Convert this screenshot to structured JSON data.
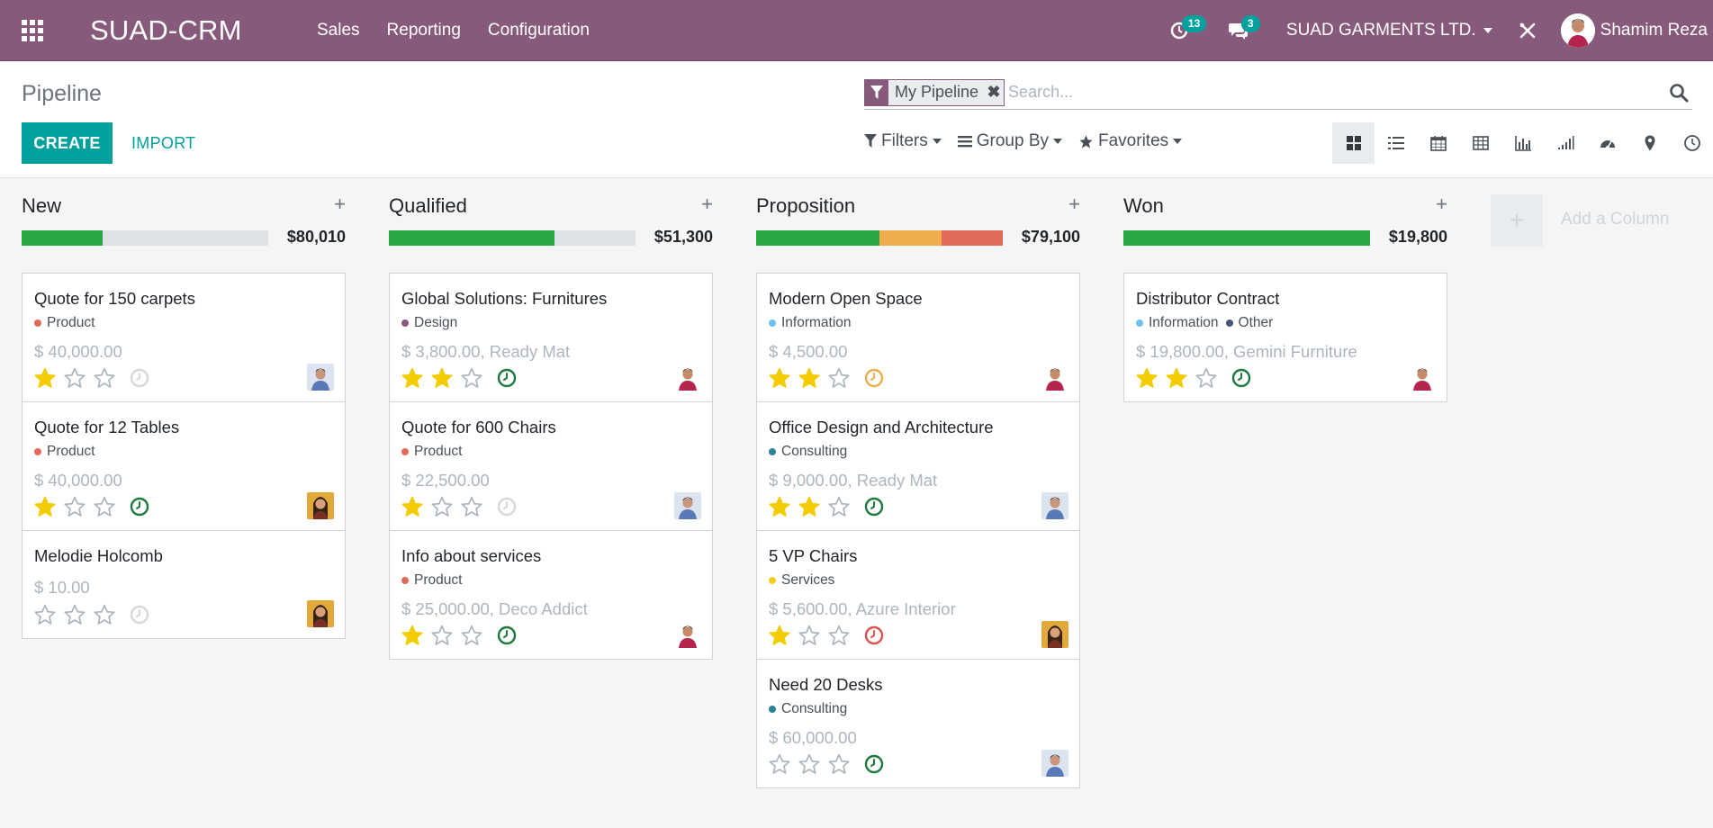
{
  "navbar": {
    "brand": "SUAD-CRM",
    "menu": [
      "Sales",
      "Reporting",
      "Configuration"
    ],
    "activity_count": "13",
    "messages_count": "3",
    "company": "SUAD GARMENTS LTD.",
    "user": "Shamim Reza",
    "bg_color": "#875a7b"
  },
  "control": {
    "title": "Pipeline",
    "create_label": "CREATE",
    "import_label": "IMPORT",
    "facet_label": "My Pipeline",
    "search_placeholder": "Search...",
    "filters_label": "Filters",
    "groupby_label": "Group By",
    "favorites_label": "Favorites",
    "views": [
      "kanban-icon",
      "list-icon",
      "calendar-icon",
      "pivot-icon",
      "graph-icon",
      "cohort-icon",
      "dashboard-icon",
      "map-icon",
      "activity-view-icon"
    ],
    "active_view": "kanban-icon"
  },
  "columns": [
    {
      "title": "New",
      "total": "$80,010",
      "progress": [
        {
          "color": "#28a745",
          "fraction": 0.33
        }
      ],
      "cards": [
        {
          "title": "Quote for 150 carpets",
          "tags": [
            {
              "label": "Product",
              "color": "#e06a5a"
            }
          ],
          "amount": "$ 40,000.00",
          "stars": 1,
          "activity": "none",
          "avatar": "male-blue"
        },
        {
          "title": "Quote for 12 Tables",
          "tags": [
            {
              "label": "Product",
              "color": "#e06a5a"
            }
          ],
          "amount": "$ 40,000.00",
          "stars": 1,
          "activity": "planned",
          "avatar": "female"
        },
        {
          "title": "Melodie Holcomb",
          "tags": [],
          "amount": "$ 10.00",
          "stars": 0,
          "activity": "none",
          "avatar": "female"
        }
      ]
    },
    {
      "title": "Qualified",
      "total": "$51,300",
      "progress": [
        {
          "color": "#28a745",
          "fraction": 0.67
        }
      ],
      "cards": [
        {
          "title": "Global Solutions: Furnitures",
          "tags": [
            {
              "label": "Design",
              "color": "#875a7b"
            }
          ],
          "amount": "$ 3,800.00, Ready Mat",
          "stars": 2,
          "activity": "planned",
          "avatar": "male-red"
        },
        {
          "title": "Quote for 600 Chairs",
          "tags": [
            {
              "label": "Product",
              "color": "#e06a5a"
            }
          ],
          "amount": "$ 22,500.00",
          "stars": 1,
          "activity": "none",
          "avatar": "male-blue"
        },
        {
          "title": "Info about services",
          "tags": [
            {
              "label": "Product",
              "color": "#e06a5a"
            }
          ],
          "amount": "$ 25,000.00, Deco Addict",
          "stars": 1,
          "activity": "planned",
          "avatar": "male-red"
        }
      ]
    },
    {
      "title": "Proposition",
      "total": "$79,100",
      "progress": [
        {
          "color": "#28a745",
          "fraction": 0.5
        },
        {
          "color": "#f0ad4e",
          "fraction": 0.25
        },
        {
          "color": "#e06a5a",
          "fraction": 0.25
        }
      ],
      "cards": [
        {
          "title": "Modern Open Space",
          "tags": [
            {
              "label": "Information",
              "color": "#6cc1ed"
            }
          ],
          "amount": "$ 4,500.00",
          "stars": 2,
          "activity": "today",
          "avatar": "male-red"
        },
        {
          "title": "Office Design and Architecture",
          "tags": [
            {
              "label": "Consulting",
              "color": "#2c8397"
            }
          ],
          "amount": "$ 9,000.00, Ready Mat",
          "stars": 2,
          "activity": "planned",
          "avatar": "male-blue"
        },
        {
          "title": "5 VP Chairs",
          "tags": [
            {
              "label": "Services",
              "color": "#f7cd1f"
            }
          ],
          "amount": "$ 5,600.00, Azure Interior",
          "stars": 1,
          "activity": "overdue",
          "avatar": "female"
        },
        {
          "title": "Need 20 Desks",
          "tags": [
            {
              "label": "Consulting",
              "color": "#2c8397"
            }
          ],
          "amount": "$ 60,000.00",
          "stars": 0,
          "activity": "planned",
          "avatar": "male-blue"
        }
      ]
    },
    {
      "title": "Won",
      "total": "$19,800",
      "progress": [
        {
          "color": "#28a745",
          "fraction": 1.0
        }
      ],
      "cards": [
        {
          "title": "Distributor Contract",
          "tags": [
            {
              "label": "Information",
              "color": "#6cc1ed"
            },
            {
              "label": "Other",
              "color": "#475577"
            }
          ],
          "amount": "$ 19,800.00, Gemini Furniture",
          "stars": 2,
          "activity": "planned",
          "avatar": "male-red"
        }
      ]
    }
  ],
  "add_column_label": "Add a Column",
  "colors": {
    "accent": "#00a09d",
    "star_on": "#f3cc00",
    "star_off": "#adb5bd",
    "activity_planned": "#1e7a3c",
    "activity_today": "#f0ad4e",
    "activity_overdue": "#d9534f",
    "activity_none": "#d6d9dc"
  }
}
